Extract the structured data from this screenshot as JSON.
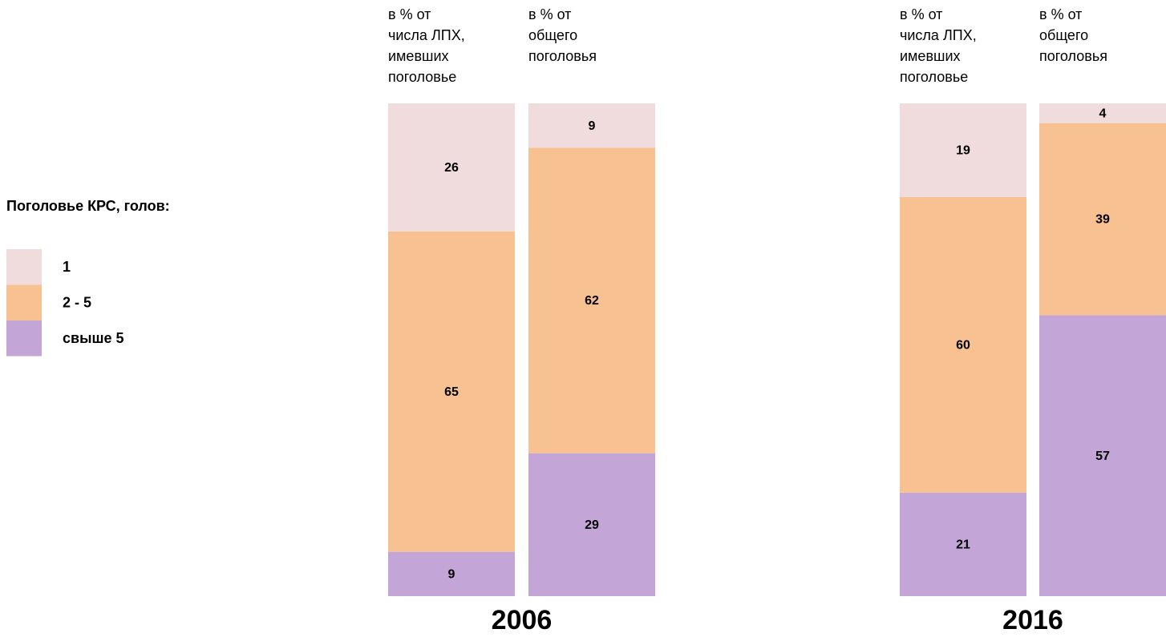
{
  "chart_data": {
    "type": "bar",
    "stacked": true,
    "legend_title": "Поголовье КРС, голов:",
    "categories": [
      "в % от\nчисла ЛПХ,\nимевших\nпоголовье",
      "в % от\nобщего\nпоголовья",
      "в % от\nчисла ЛПХ,\nимевших\nпоголовье",
      "в % от\nобщего\nпоголовья"
    ],
    "groups": [
      "2006",
      "2016"
    ],
    "ylim": [
      0,
      100
    ],
    "series": [
      {
        "name": "1",
        "color": "#f0dcdc",
        "values": [
          26,
          9,
          19,
          4
        ]
      },
      {
        "name": "2 - 5",
        "color": "#f8c192",
        "values": [
          65,
          62,
          60,
          39
        ]
      },
      {
        "name": "свыше 5",
        "color": "#c3a6d7",
        "values": [
          9,
          29,
          21,
          57
        ]
      }
    ]
  }
}
